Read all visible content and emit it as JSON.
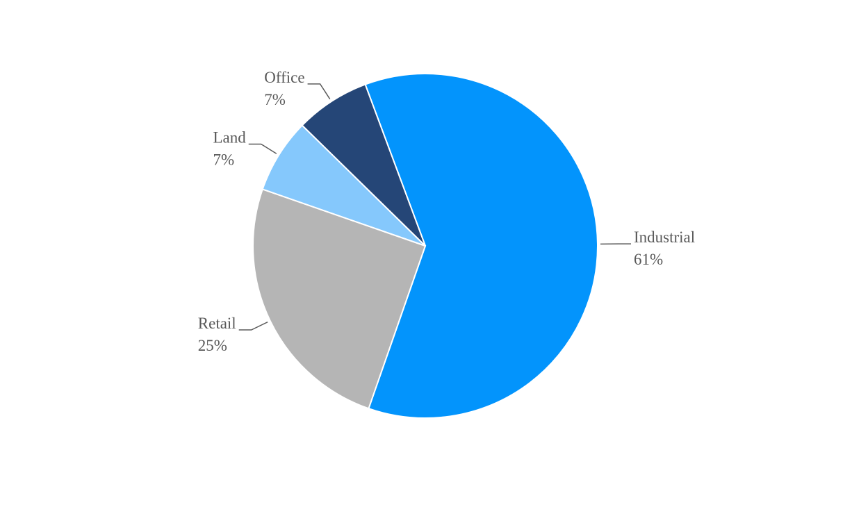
{
  "chart_data": {
    "type": "pie",
    "categories": [
      "Industrial",
      "Retail",
      "Land",
      "Office"
    ],
    "values": [
      61,
      25,
      7,
      7
    ],
    "value_labels": [
      "61%",
      "25%",
      "7%",
      "7%"
    ],
    "colors": [
      "#0394fc",
      "#b5b5b5",
      "#85c8fc",
      "#254677"
    ]
  }
}
